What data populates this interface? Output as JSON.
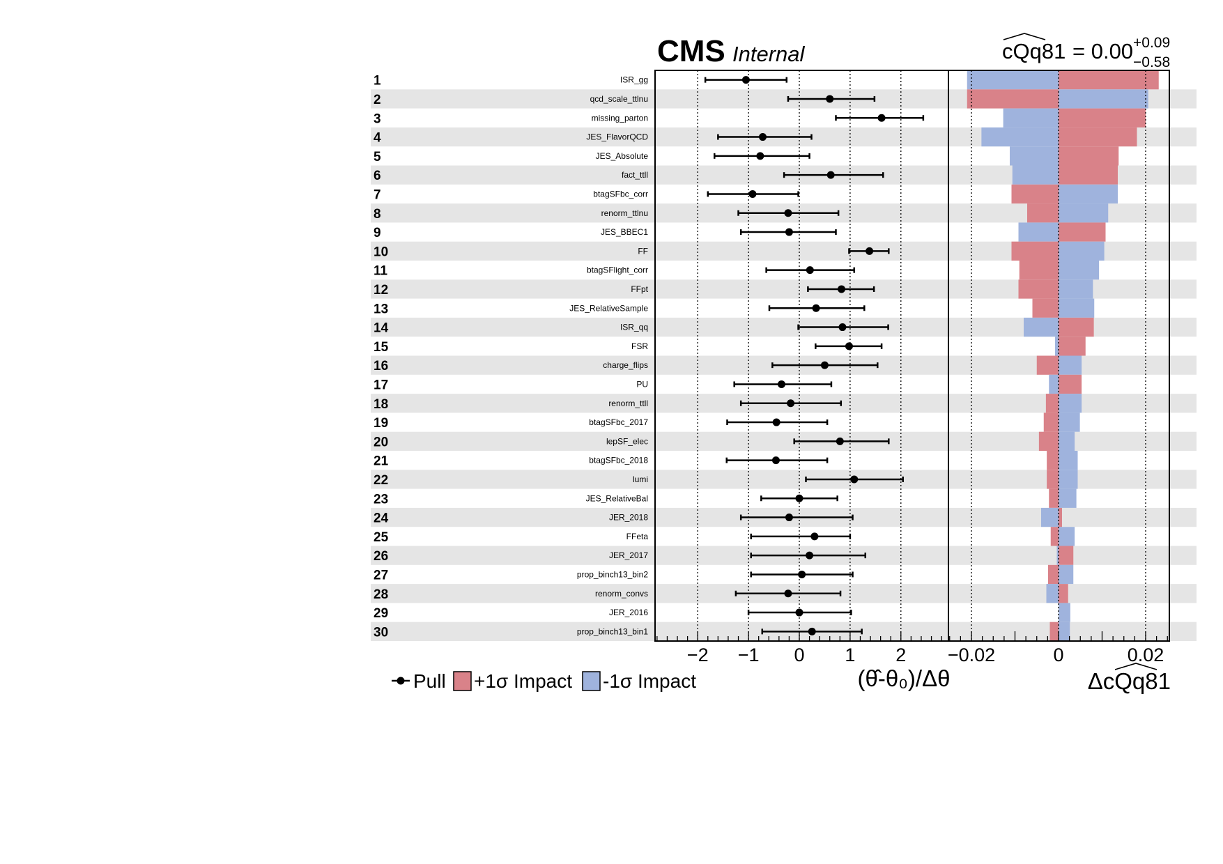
{
  "header": {
    "experiment": "CMS",
    "status": "Internal",
    "poi_name": "cQq81",
    "poi_value": "= 0.00",
    "poi_err_up": "+0.09",
    "poi_err_down": "−0.58"
  },
  "legend": {
    "pull_label": "Pull",
    "plus_label": "+1σ Impact",
    "minus_label": "-1σ Impact"
  },
  "colors": {
    "plus_impact": "#d98289",
    "minus_impact": "#9fb3dd",
    "row_shade": "#e5e5e5",
    "ink": "#000000"
  },
  "chart_data": [
    {
      "type": "scatter",
      "name": "pulls",
      "xlabel": "(θ̂-θ₀)/Δθ",
      "xlim": [
        -2.9,
        2.9
      ],
      "x_ticks": [
        "−2",
        "−1",
        "0",
        "1",
        "2"
      ],
      "x_tick_values": [
        -2,
        -1,
        0,
        1,
        2
      ],
      "gridlines": [
        -2,
        -1,
        0,
        1,
        2
      ],
      "rows": [
        {
          "rank": "1",
          "name": "ISR_gg",
          "pull": -1.05,
          "err_lo": 0.8,
          "err_hi": 0.8
        },
        {
          "rank": "2",
          "name": "qcd_scale_ttlnu",
          "pull": 0.6,
          "err_lo": 0.82,
          "err_hi": 0.88
        },
        {
          "rank": "3",
          "name": "missing_parton",
          "pull": 1.62,
          "err_lo": 0.9,
          "err_hi": 0.82
        },
        {
          "rank": "4",
          "name": "JES_FlavorQCD",
          "pull": -0.72,
          "err_lo": 0.88,
          "err_hi": 0.96
        },
        {
          "rank": "5",
          "name": "JES_Absolute",
          "pull": -0.77,
          "err_lo": 0.9,
          "err_hi": 0.97
        },
        {
          "rank": "6",
          "name": "fact_ttll",
          "pull": 0.62,
          "err_lo": 0.92,
          "err_hi": 1.03
        },
        {
          "rank": "7",
          "name": "btagSFbc_corr",
          "pull": -0.92,
          "err_lo": 0.88,
          "err_hi": 0.9
        },
        {
          "rank": "8",
          "name": "renorm_ttlnu",
          "pull": -0.22,
          "err_lo": 0.98,
          "err_hi": 0.99
        },
        {
          "rank": "9",
          "name": "JES_BBEC1",
          "pull": -0.2,
          "err_lo": 0.95,
          "err_hi": 0.92
        },
        {
          "rank": "10",
          "name": "FF",
          "pull": 1.38,
          "err_lo": 0.4,
          "err_hi": 0.38
        },
        {
          "rank": "11",
          "name": "btagSFlight_corr",
          "pull": 0.21,
          "err_lo": 0.86,
          "err_hi": 0.87
        },
        {
          "rank": "12",
          "name": "FFpt",
          "pull": 0.83,
          "err_lo": 0.66,
          "err_hi": 0.64
        },
        {
          "rank": "13",
          "name": "JES_RelativeSample",
          "pull": 0.33,
          "err_lo": 0.92,
          "err_hi": 0.95
        },
        {
          "rank": "14",
          "name": "ISR_qq",
          "pull": 0.85,
          "err_lo": 0.87,
          "err_hi": 0.9
        },
        {
          "rank": "15",
          "name": "FSR",
          "pull": 0.98,
          "err_lo": 0.66,
          "err_hi": 0.64
        },
        {
          "rank": "16",
          "name": "charge_flips",
          "pull": 0.5,
          "err_lo": 1.03,
          "err_hi": 1.04
        },
        {
          "rank": "17",
          "name": "PU",
          "pull": -0.35,
          "err_lo": 0.93,
          "err_hi": 0.98
        },
        {
          "rank": "18",
          "name": "renorm_ttll",
          "pull": -0.17,
          "err_lo": 0.98,
          "err_hi": 0.99
        },
        {
          "rank": "19",
          "name": "btagSFbc_2017",
          "pull": -0.45,
          "err_lo": 0.97,
          "err_hi": 1.0
        },
        {
          "rank": "20",
          "name": "lepSF_elec",
          "pull": 0.8,
          "err_lo": 0.9,
          "err_hi": 0.96
        },
        {
          "rank": "21",
          "name": "btagSFbc_2018",
          "pull": -0.46,
          "err_lo": 0.97,
          "err_hi": 1.01
        },
        {
          "rank": "22",
          "name": "lumi",
          "pull": 1.08,
          "err_lo": 0.95,
          "err_hi": 0.96
        },
        {
          "rank": "23",
          "name": "JES_RelativeBal",
          "pull": 0.0,
          "err_lo": 0.75,
          "err_hi": 0.75
        },
        {
          "rank": "24",
          "name": "JER_2018",
          "pull": -0.2,
          "err_lo": 0.95,
          "err_hi": 1.25
        },
        {
          "rank": "25",
          "name": "FFeta",
          "pull": 0.3,
          "err_lo": 1.25,
          "err_hi": 0.7
        },
        {
          "rank": "26",
          "name": "JER_2017",
          "pull": 0.2,
          "err_lo": 1.15,
          "err_hi": 1.1
        },
        {
          "rank": "27",
          "name": "prop_binch13_bin2",
          "pull": 0.05,
          "err_lo": 1.0,
          "err_hi": 1.0
        },
        {
          "rank": "28",
          "name": "renorm_convs",
          "pull": -0.22,
          "err_lo": 1.03,
          "err_hi": 1.03
        },
        {
          "rank": "29",
          "name": "JER_2016",
          "pull": 0.0,
          "err_lo": 1.0,
          "err_hi": 1.02
        },
        {
          "rank": "30",
          "name": "prop_binch13_bin1",
          "pull": 0.25,
          "err_lo": 0.98,
          "err_hi": 0.98
        }
      ]
    },
    {
      "type": "bar",
      "orientation": "horizontal",
      "name": "impacts",
      "xlabel": "ΔcQq81",
      "xlim": [
        -0.0255,
        0.0255
      ],
      "x_ticks": [
        "−0.02",
        "0",
        "0.02"
      ],
      "x_tick_values": [
        -0.02,
        0,
        0.02
      ],
      "gridlines": [
        -0.02,
        0.02
      ],
      "categories": [
        "ISR_gg",
        "qcd_scale_ttlnu",
        "missing_parton",
        "JES_FlavorQCD",
        "JES_Absolute",
        "fact_ttll",
        "btagSFbc_corr",
        "renorm_ttlnu",
        "JES_BBEC1",
        "FF",
        "btagSFlight_corr",
        "FFpt",
        "JES_RelativeSample",
        "ISR_qq",
        "FSR",
        "charge_flips",
        "PU",
        "renorm_ttll",
        "btagSFbc_2017",
        "lepSF_elec",
        "btagSFbc_2018",
        "lumi",
        "JES_RelativeBal",
        "JER_2018",
        "FFeta",
        "JER_2017",
        "prop_binch13_bin2",
        "renorm_convs",
        "JER_2016",
        "prop_binch13_bin1"
      ],
      "series": [
        {
          "name": "+1σ Impact",
          "values": [
            0.023,
            -0.021,
            0.02,
            0.018,
            0.0138,
            0.0136,
            -0.0108,
            -0.0072,
            0.0108,
            -0.0108,
            -0.009,
            -0.0092,
            -0.006,
            0.0081,
            0.0062,
            -0.005,
            0.0053,
            -0.0029,
            -0.0034,
            -0.0045,
            -0.0027,
            -0.0027,
            -0.0022,
            0.0008,
            -0.0018,
            0.0034,
            -0.0024,
            0.0022,
            0.0,
            -0.002
          ]
        },
        {
          "name": "-1σ Impact",
          "values": [
            -0.021,
            0.0206,
            -0.0127,
            -0.0177,
            -0.0112,
            -0.0106,
            0.0136,
            0.0114,
            -0.0092,
            0.0105,
            0.0093,
            0.0079,
            0.0082,
            -0.008,
            -0.0008,
            0.0053,
            -0.0022,
            0.0053,
            0.0049,
            0.0037,
            0.0044,
            0.0044,
            0.0041,
            -0.004,
            0.0037,
            -0.0004,
            0.0034,
            -0.0028,
            0.0027,
            0.0026
          ]
        }
      ]
    }
  ]
}
